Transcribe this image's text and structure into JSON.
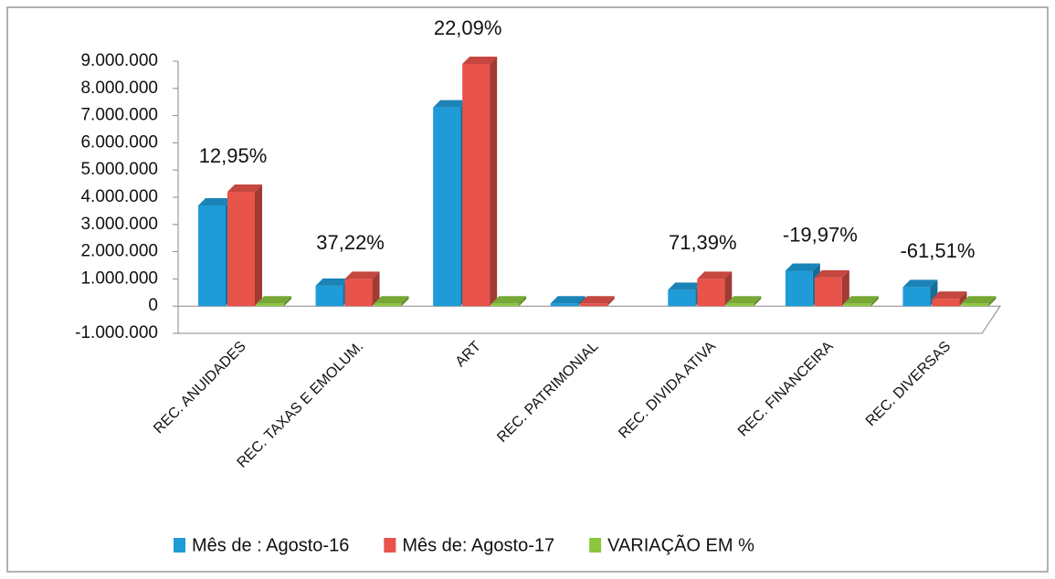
{
  "chart_data": {
    "type": "bar",
    "categories": [
      "REC. ANUIDADES",
      "REC. TAXAS E EMOLUM.",
      "ART",
      "REC. PATRIMONIAL",
      "REC. DIVIDA ATIVA",
      "REC. FINANCEIRA",
      "REC. DIVERSAS"
    ],
    "series": [
      {
        "name": "Mês de : Agosto-16",
        "color": "#1f9bd7",
        "values": [
          3700000,
          750000,
          7300000,
          20000,
          600000,
          1300000,
          700000
        ]
      },
      {
        "name": "Mês de: Agosto-17",
        "color": "#e8534a",
        "values": [
          4200000,
          1000000,
          8900000,
          20000,
          1000000,
          1050000,
          270000
        ]
      },
      {
        "name": "VARIAÇÃO  EM %",
        "color": "#8cc63f",
        "values": [
          12.95,
          37.22,
          22.09,
          null,
          71.39,
          -19.97,
          -61.51
        ],
        "value_labels": [
          "12,95%",
          "37,22%",
          "22,09%",
          null,
          "71,39%",
          "-19,97%",
          "-61,51%"
        ]
      }
    ],
    "ylim": [
      -1000000,
      9000000
    ],
    "yticks": [
      {
        "value": -1000000,
        "label": "-1.000.000"
      },
      0,
      {
        "value": 1000000,
        "label": "1.000.000"
      },
      {
        "value": 2000000,
        "label": "2.000.000"
      },
      {
        "value": 3000000,
        "label": "3.000.000"
      },
      {
        "value": 4000000,
        "label": "4.000.000"
      },
      {
        "value": 5000000,
        "label": "5.000.000"
      },
      {
        "value": 6000000,
        "label": "6.000.000"
      },
      {
        "value": 7000000,
        "label": "7.000.000"
      },
      {
        "value": 8000000,
        "label": "8.000.000"
      },
      {
        "value": 9000000,
        "label": "9.000.000"
      }
    ],
    "legend": "bottom"
  }
}
